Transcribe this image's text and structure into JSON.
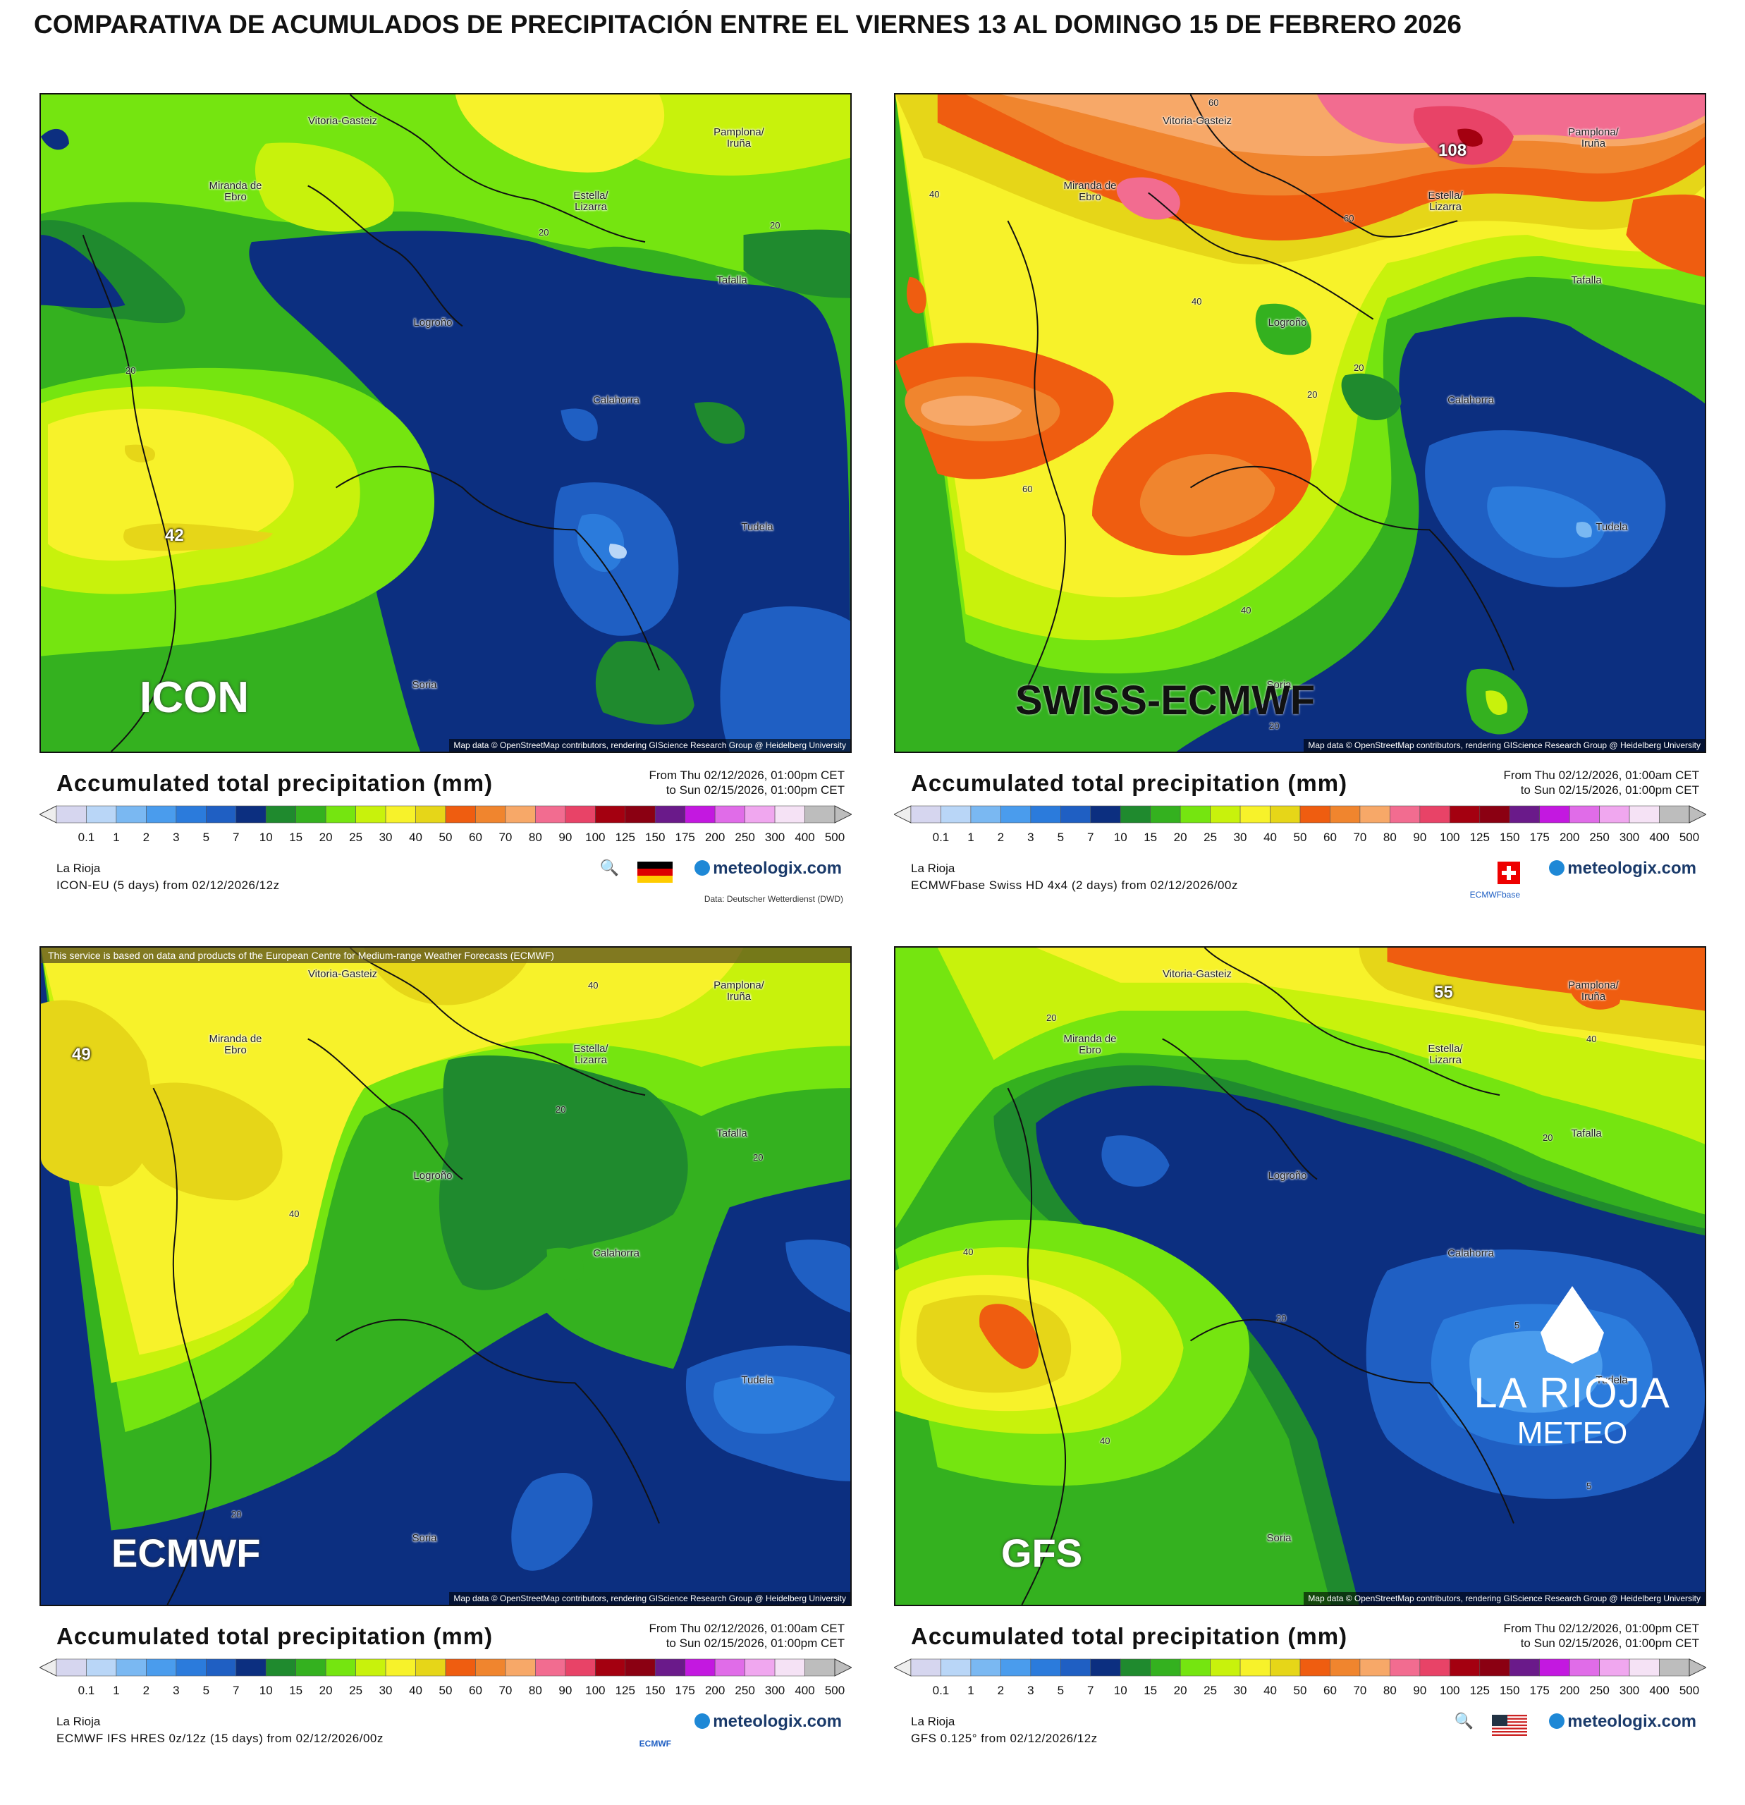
{
  "title": "COMPARATIVA DE ACUMULADOS DE PRECIPITACIÓN ENTRE EL VIERNES 13 AL DOMINGO 15 DE FEBRERO 2026",
  "legend_scale": [
    "0.1",
    "1",
    "2",
    "3",
    "5",
    "7",
    "10",
    "15",
    "20",
    "25",
    "30",
    "40",
    "50",
    "60",
    "70",
    "80",
    "90",
    "100",
    "125",
    "150",
    "175",
    "200",
    "250",
    "300",
    "400",
    "500"
  ],
  "legend_colors": [
    "#d6d6ef",
    "#b9d6f7",
    "#7ab8f2",
    "#4a9ced",
    "#2b7bdc",
    "#1f5fc3",
    "#0c2f80",
    "#1f8a2e",
    "#34b11f",
    "#75e510",
    "#c8f20c",
    "#f7f22a",
    "#e6d618",
    "#ef5d10",
    "#f0852e",
    "#f7a868",
    "#f26c90",
    "#e84367",
    "#a40010",
    "#8b0012",
    "#6a1a8a",
    "#c318e0",
    "#e06ce8",
    "#f0a7ef",
    "#f5e2f5",
    "#bdbdbd"
  ],
  "panels": [
    {
      "model_label": "ICON",
      "legend_title": "Accumulated total precipitation (mm)",
      "from": "From Thu 02/12/2026, 01:00pm CET",
      "to": "to Sun 02/15/2026, 01:00pm CET",
      "region": "La Rioja",
      "run": "ICON-EU (5 days) from 02/12/2026/12z",
      "provider": "Data: Deutscher Wetterdienst (DWD)",
      "flag": "germany-flag",
      "logo": "meteologix.com",
      "attribution": "Map data © OpenStreetMap contributors, rendering GIScience Research Group @ Heidelberg University",
      "max_value": "42",
      "isolines": [
        "20",
        "20",
        "20"
      ]
    },
    {
      "model_label": "SWISS-ECMWF",
      "legend_title": "Accumulated total precipitation (mm)",
      "from": "From Thu 02/12/2026, 01:00am CET",
      "to": "to Sun 02/15/2026, 01:00pm CET",
      "region": "La Rioja",
      "run": "ECMWFbase Swiss HD 4x4 (2 days) from 02/12/2026/00z",
      "provider": "ECMWFbase",
      "flag": "switzerland-flag",
      "logo": "meteologix.com",
      "attribution": "Map data © OpenStreetMap contributors, rendering GIScience Research Group @ Heidelberg University",
      "max_value": "108",
      "isolines": [
        "60",
        "40",
        "60",
        "40",
        "20",
        "20",
        "60",
        "40",
        "20"
      ]
    },
    {
      "model_label": "ECMWF",
      "legend_title": "Accumulated total precipitation (mm)",
      "from": "From Thu 02/12/2026, 01:00am CET",
      "to": "to Sun 02/15/2026, 01:00pm CET",
      "region": "La Rioja",
      "run": "ECMWF IFS HRES 0z/12z (15 days) from 02/12/2026/00z",
      "provider": "ECMWF",
      "banner": "This service is based on data and products of the European Centre for Medium-range Weather Forecasts (ECMWF)",
      "logo": "meteologix.com",
      "attribution": "Map data © OpenStreetMap contributors, rendering GIScience Research Group @ Heidelberg University",
      "max_value": "49",
      "isolines": [
        "40",
        "20",
        "20",
        "40",
        "20"
      ]
    },
    {
      "model_label": "GFS",
      "legend_title": "Accumulated total precipitation (mm)",
      "from": "From Thu 02/12/2026, 01:00pm CET",
      "to": "to Sun 02/15/2026, 01:00pm CET",
      "region": "La Rioja",
      "run": "GFS 0.125° from 02/12/2026/12z",
      "flag": "usa-flag",
      "logo": "meteologix.com",
      "attribution": "Map data © OpenStreetMap contributors, rendering GIScience Research Group @ Heidelberg University",
      "max_value": "55",
      "isolines": [
        "20",
        "40",
        "20",
        "40",
        "20",
        "40",
        "5",
        "5"
      ],
      "watermark_big": "LA RIOJA",
      "watermark_small": "METEO"
    }
  ],
  "cities": {
    "vitoria": "Vitoria-Gasteiz",
    "pamplona": "Pamplona/ Iruña",
    "miranda": "Miranda de Ebro",
    "estella": "Estella/ Lizarra",
    "tafalla": "Tafalla",
    "logrono": "Logroño",
    "calahorra": "Calahorra",
    "tudela": "Tudela",
    "soria": "Soria"
  }
}
